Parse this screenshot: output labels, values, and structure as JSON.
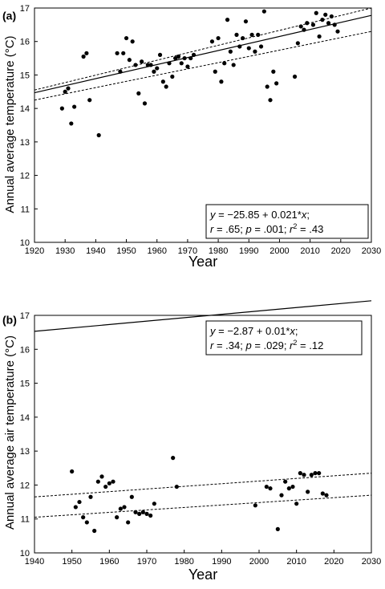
{
  "chart_data": [
    {
      "type": "scatter",
      "panel_label": "(a)",
      "xlabel": "Year",
      "ylabel": "Annual average temperature (°C)",
      "xlim": [
        1920,
        2030
      ],
      "ylim": [
        10,
        17
      ],
      "xticks": [
        1920,
        1930,
        1940,
        1950,
        1960,
        1970,
        1980,
        1990,
        2000,
        2010,
        2020,
        2030
      ],
      "yticks": [
        10,
        11,
        12,
        13,
        14,
        15,
        16,
        17
      ],
      "grid": false,
      "equation_line1": "y = −25.85 + 0.021*x;",
      "equation_line2": "r = .65; p = .001; r² = .43",
      "regression": {
        "intercept": -25.85,
        "slope": 0.021
      },
      "ci_band": {
        "at_xmin": [
          14.25,
          14.55
        ],
        "at_xmax": [
          16.3,
          17.0
        ]
      },
      "points": [
        [
          1929,
          14.0
        ],
        [
          1930,
          14.5
        ],
        [
          1931,
          14.6
        ],
        [
          1932,
          13.55
        ],
        [
          1933,
          14.05
        ],
        [
          1936,
          15.55
        ],
        [
          1937,
          15.65
        ],
        [
          1938,
          14.25
        ],
        [
          1941,
          13.2
        ],
        [
          1947,
          15.65
        ],
        [
          1948,
          15.1
        ],
        [
          1949,
          15.65
        ],
        [
          1950,
          16.1
        ],
        [
          1951,
          15.45
        ],
        [
          1952,
          16.0
        ],
        [
          1953,
          15.3
        ],
        [
          1954,
          14.45
        ],
        [
          1955,
          15.4
        ],
        [
          1956,
          14.15
        ],
        [
          1957,
          15.3
        ],
        [
          1958,
          15.3
        ],
        [
          1959,
          15.1
        ],
        [
          1960,
          15.2
        ],
        [
          1961,
          15.6
        ],
        [
          1962,
          14.8
        ],
        [
          1963,
          14.65
        ],
        [
          1964,
          15.35
        ],
        [
          1965,
          14.95
        ],
        [
          1966,
          15.5
        ],
        [
          1967,
          15.55
        ],
        [
          1968,
          15.35
        ],
        [
          1969,
          15.5
        ],
        [
          1970,
          15.25
        ],
        [
          1971,
          15.5
        ],
        [
          1972,
          15.6
        ],
        [
          1978,
          16.0
        ],
        [
          1979,
          15.1
        ],
        [
          1980,
          16.1
        ],
        [
          1981,
          14.8
        ],
        [
          1982,
          15.35
        ],
        [
          1983,
          16.65
        ],
        [
          1984,
          15.7
        ],
        [
          1985,
          15.3
        ],
        [
          1986,
          16.2
        ],
        [
          1987,
          15.85
        ],
        [
          1988,
          16.1
        ],
        [
          1989,
          16.6
        ],
        [
          1990,
          15.8
        ],
        [
          1991,
          16.2
        ],
        [
          1992,
          15.7
        ],
        [
          1993,
          16.2
        ],
        [
          1994,
          15.85
        ],
        [
          1995,
          16.9
        ],
        [
          1996,
          14.65
        ],
        [
          1997,
          14.25
        ],
        [
          1998,
          15.1
        ],
        [
          1999,
          14.75
        ],
        [
          2005,
          14.95
        ],
        [
          2006,
          15.95
        ],
        [
          2007,
          16.45
        ],
        [
          2008,
          16.35
        ],
        [
          2009,
          16.55
        ],
        [
          2011,
          16.5
        ],
        [
          2012,
          16.85
        ],
        [
          2013,
          16.15
        ],
        [
          2014,
          16.65
        ],
        [
          2015,
          16.8
        ],
        [
          2016,
          16.55
        ],
        [
          2017,
          16.75
        ],
        [
          2018,
          16.5
        ],
        [
          2019,
          16.3
        ]
      ]
    },
    {
      "type": "scatter",
      "panel_label": "(b)",
      "xlabel": "Year",
      "ylabel": "Annual average air temperature (°C)",
      "xlim": [
        1940,
        2030
      ],
      "ylim": [
        10,
        17
      ],
      "xticks": [
        1940,
        1950,
        1960,
        1970,
        1980,
        1990,
        2000,
        2010,
        2020,
        2030
      ],
      "yticks": [
        10,
        11,
        12,
        13,
        14,
        15,
        16,
        17
      ],
      "grid": false,
      "equation_line1": "y = −2.87 + 0.01*x;",
      "equation_line2": "r = .34; p = .029; r² = .12",
      "regression": {
        "intercept": -2.87,
        "slope": 0.01
      },
      "ci_band": {
        "at_xmin": [
          11.05,
          11.65
        ],
        "at_xmax": [
          11.7,
          12.35
        ]
      },
      "points": [
        [
          1950,
          12.4
        ],
        [
          1951,
          11.35
        ],
        [
          1952,
          11.5
        ],
        [
          1953,
          11.05
        ],
        [
          1954,
          10.9
        ],
        [
          1955,
          11.65
        ],
        [
          1956,
          10.65
        ],
        [
          1957,
          12.1
        ],
        [
          1958,
          12.25
        ],
        [
          1959,
          11.95
        ],
        [
          1960,
          12.05
        ],
        [
          1961,
          12.1
        ],
        [
          1962,
          11.05
        ],
        [
          1963,
          11.3
        ],
        [
          1964,
          11.35
        ],
        [
          1965,
          10.9
        ],
        [
          1966,
          11.65
        ],
        [
          1967,
          11.2
        ],
        [
          1968,
          11.15
        ],
        [
          1969,
          11.2
        ],
        [
          1970,
          11.15
        ],
        [
          1971,
          11.1
        ],
        [
          1972,
          11.45
        ],
        [
          1977,
          12.8
        ],
        [
          1978,
          11.95
        ],
        [
          1999,
          11.4
        ],
        [
          2002,
          11.95
        ],
        [
          2003,
          11.9
        ],
        [
          2005,
          10.7
        ],
        [
          2006,
          11.7
        ],
        [
          2007,
          12.1
        ],
        [
          2008,
          11.9
        ],
        [
          2009,
          11.95
        ],
        [
          2010,
          11.45
        ],
        [
          2011,
          12.35
        ],
        [
          2012,
          12.3
        ],
        [
          2013,
          11.8
        ],
        [
          2014,
          12.3
        ],
        [
          2015,
          12.35
        ],
        [
          2016,
          12.35
        ],
        [
          2017,
          11.75
        ],
        [
          2018,
          11.7
        ]
      ]
    }
  ]
}
